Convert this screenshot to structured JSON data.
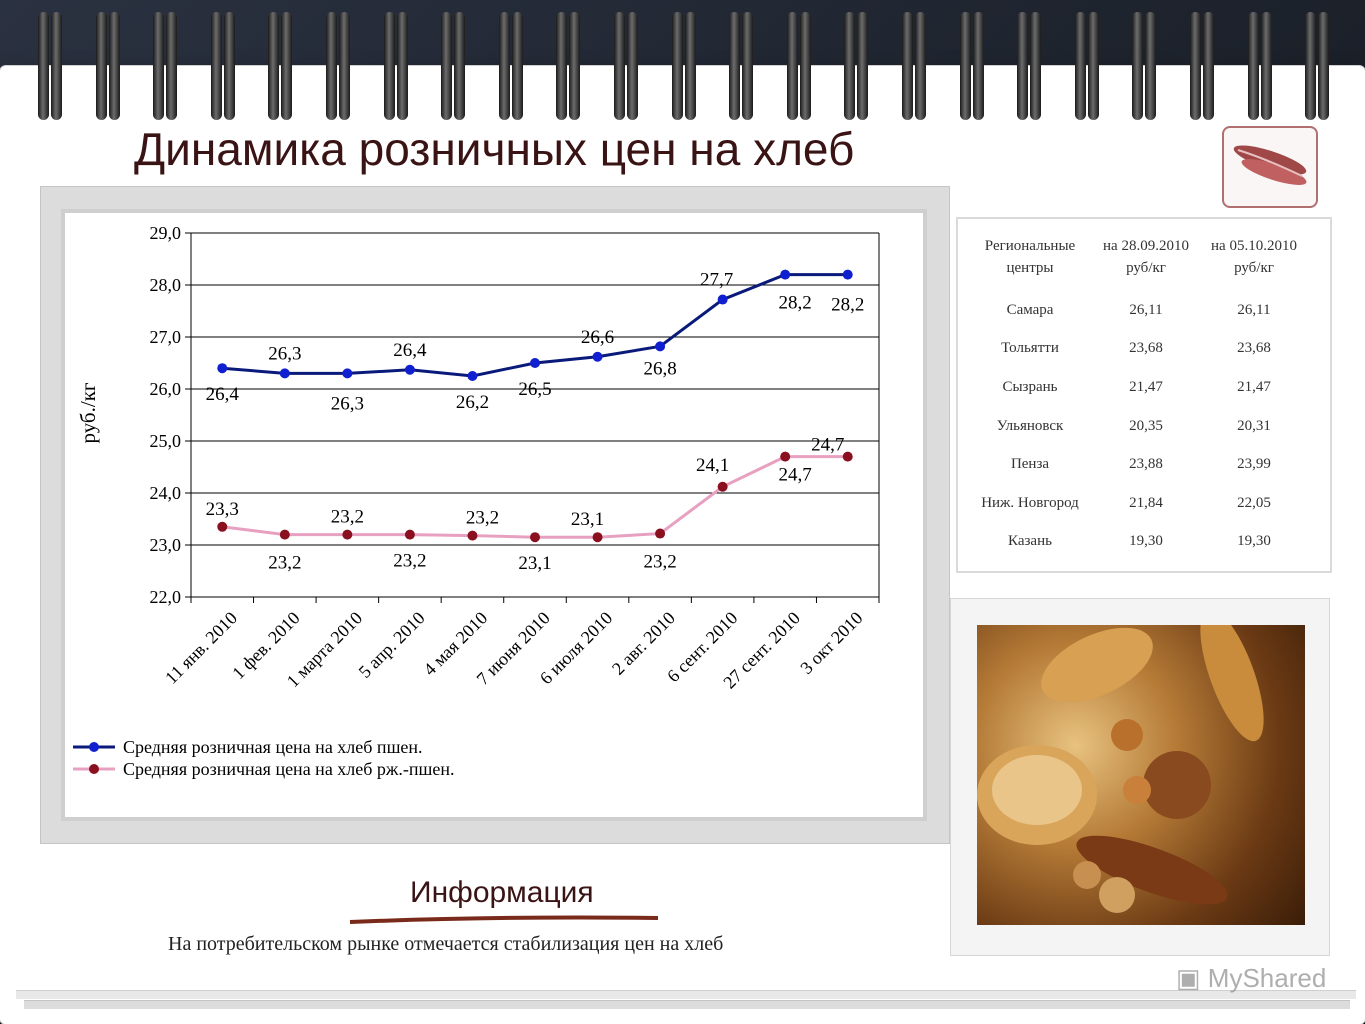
{
  "page": {
    "title": "Динамика розничных цен на хлеб",
    "info_heading": "Информация",
    "info_text": "На потребительском рынке отмечается стабилизация цен на хлеб",
    "watermark": "MyShared"
  },
  "chart_data": {
    "type": "line",
    "title": "",
    "ylabel": "руб./кг",
    "xlabel": "",
    "ylim": [
      22.0,
      29.0
    ],
    "yticks": [
      "22,0",
      "23,0",
      "24,0",
      "25,0",
      "26,0",
      "27,0",
      "28,0",
      "29,0"
    ],
    "grid": true,
    "legend_position": "bottom-left",
    "categories": [
      "11 янв. 2010",
      "1 фев. 2010",
      "1 марта 2010",
      "5 апр. 2010",
      "4 мая 2010",
      "7 июня 2010",
      "6 июля 2010",
      "2 авг. 2010",
      "6 сент. 2010",
      "27 сент. 2010",
      "3 окт 2010"
    ],
    "series": [
      {
        "name": "Средняя розничная цена на хлеб пшен.",
        "color": "#0a1a7a",
        "values": [
          26.4,
          26.3,
          26.3,
          26.37,
          26.25,
          26.5,
          26.62,
          26.82,
          27.72,
          28.2,
          28.2
        ],
        "labels": [
          "26,4",
          "26,3",
          "26,3",
          "26,4",
          "26,2",
          "26,5",
          "26,6",
          "26,8",
          "27,7",
          "28,2",
          "28,2"
        ]
      },
      {
        "name": "Средняя розничная цена на хлеб рж.-пшен.",
        "color": "#e8a0c0",
        "values": [
          23.35,
          23.2,
          23.2,
          23.2,
          23.18,
          23.15,
          23.15,
          23.22,
          24.12,
          24.7,
          24.7
        ],
        "labels": [
          "23,3",
          "23,2",
          "23,2",
          "23,2",
          "23,2",
          "23,1",
          "23,1",
          "23,2",
          "24,1",
          "24,7",
          "24,7"
        ]
      }
    ]
  },
  "table": {
    "headers": [
      "Региональные центры",
      "на 28.09.2010 руб/кг",
      "на 05.10.2010 руб/кг"
    ],
    "rows": [
      [
        "Самара",
        "26,11",
        "26,11"
      ],
      [
        "Тольятти",
        "23,68",
        "23,68"
      ],
      [
        "Сызрань",
        "21,47",
        "21,47"
      ],
      [
        "Ульяновск",
        "20,35",
        "20,31"
      ],
      [
        "Пенза",
        "23,88",
        "23,99"
      ],
      [
        "Ниж. Новгород",
        "21,84",
        "22,05"
      ],
      [
        "Казань",
        "19,30",
        "19,30"
      ]
    ]
  },
  "icons": {
    "logo": "bread-logo-icon",
    "watermark": "presentation-icon"
  }
}
